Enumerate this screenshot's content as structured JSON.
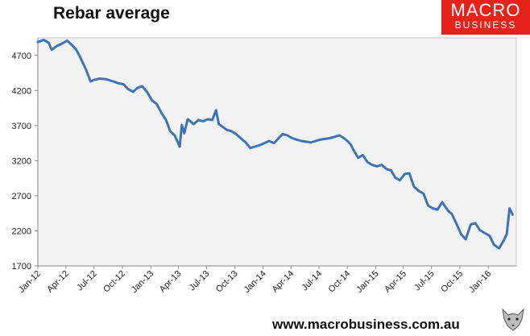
{
  "header": {
    "title": "Rebar average"
  },
  "logo": {
    "line1": "MACRO",
    "line2": "BUSINESS",
    "background": "#e5231b"
  },
  "footer": {
    "url": "www.macrobusiness.com.au"
  },
  "chart_data": {
    "type": "line",
    "title": "Rebar average",
    "xlabel": "",
    "ylabel": "",
    "ylim": [
      1700,
      4950
    ],
    "y_ticks": [
      1700,
      2200,
      2700,
      3200,
      3700,
      4200,
      4700
    ],
    "x_ticks": [
      "Jan-12",
      "Apr-12",
      "Jul-12",
      "Oct-12",
      "Jan-13",
      "Apr-13",
      "Jul-13",
      "Oct-13",
      "Jan-14",
      "Apr-14",
      "Jul-14",
      "Oct-14",
      "Jan-15",
      "Apr-15",
      "Jul-15",
      "Oct-15",
      "Jan-16"
    ],
    "grid": false,
    "plot_background": "#f2f2f2",
    "line_color": "#3e74b5",
    "series": [
      {
        "x": [
          "2012-01-01",
          "2012-01-20",
          "2012-02-05",
          "2012-02-15",
          "2012-03-01",
          "2012-03-20",
          "2012-04-05",
          "2012-04-20",
          "2012-05-05",
          "2012-05-20",
          "2012-06-05",
          "2012-06-20",
          "2012-07-01",
          "2012-07-20",
          "2012-08-10",
          "2012-09-01",
          "2012-09-20",
          "2012-10-05",
          "2012-10-20",
          "2012-11-05",
          "2012-11-20",
          "2012-12-05",
          "2012-12-20",
          "2013-01-05",
          "2013-01-20",
          "2013-02-05",
          "2013-02-20",
          "2013-03-05",
          "2013-03-20",
          "2013-04-05",
          "2013-04-12",
          "2013-04-20",
          "2013-05-01",
          "2013-05-10",
          "2013-05-20",
          "2013-06-05",
          "2013-06-20",
          "2013-07-05",
          "2013-07-20",
          "2013-08-01",
          "2013-08-10",
          "2013-08-20",
          "2013-09-05",
          "2013-09-20",
          "2013-10-05",
          "2013-10-20",
          "2013-11-05",
          "2013-11-20",
          "2013-12-05",
          "2013-12-20",
          "2014-01-05",
          "2014-01-20",
          "2014-02-05",
          "2014-02-20",
          "2014-03-05",
          "2014-03-20",
          "2014-04-05",
          "2014-04-20",
          "2014-05-05",
          "2014-05-20",
          "2014-06-05",
          "2014-06-20",
          "2014-07-05",
          "2014-07-20",
          "2014-08-05",
          "2014-08-20",
          "2014-09-05",
          "2014-09-20",
          "2014-10-01",
          "2014-10-12",
          "2014-10-20",
          "2014-11-05",
          "2014-11-20",
          "2014-12-05",
          "2014-12-20",
          "2015-01-05",
          "2015-01-20",
          "2015-02-05",
          "2015-02-20",
          "2015-03-05",
          "2015-03-20",
          "2015-04-05",
          "2015-04-20",
          "2015-05-05",
          "2015-05-20",
          "2015-06-05",
          "2015-06-20",
          "2015-07-05",
          "2015-07-20",
          "2015-08-05",
          "2015-08-15",
          "2015-08-25",
          "2015-09-05",
          "2015-09-20",
          "2015-10-05",
          "2015-10-20",
          "2015-11-05",
          "2015-11-20",
          "2015-12-05",
          "2015-12-20",
          "2016-01-05",
          "2016-01-20",
          "2016-02-05",
          "2016-02-20",
          "2016-03-01",
          "2016-03-10",
          "2016-03-20"
        ],
        "values": [
          4890,
          4920,
          4880,
          4780,
          4830,
          4870,
          4910,
          4850,
          4780,
          4650,
          4500,
          4330,
          4350,
          4370,
          4360,
          4330,
          4300,
          4290,
          4220,
          4180,
          4240,
          4260,
          4180,
          4060,
          4010,
          3880,
          3780,
          3620,
          3560,
          3400,
          3710,
          3590,
          3790,
          3760,
          3720,
          3780,
          3760,
          3790,
          3780,
          3920,
          3720,
          3690,
          3640,
          3620,
          3580,
          3520,
          3460,
          3380,
          3400,
          3420,
          3450,
          3480,
          3450,
          3520,
          3580,
          3560,
          3520,
          3500,
          3480,
          3470,
          3460,
          3480,
          3500,
          3510,
          3520,
          3540,
          3560,
          3520,
          3480,
          3430,
          3360,
          3240,
          3280,
          3180,
          3140,
          3120,
          3140,
          3080,
          3060,
          2960,
          2920,
          3010,
          3020,
          2830,
          2770,
          2730,
          2560,
          2520,
          2500,
          2610,
          2540,
          2480,
          2440,
          2300,
          2150,
          2080,
          2290,
          2310,
          2210,
          2170,
          2130,
          2000,
          1950,
          2060,
          2150,
          2520,
          2430
        ]
      }
    ]
  }
}
